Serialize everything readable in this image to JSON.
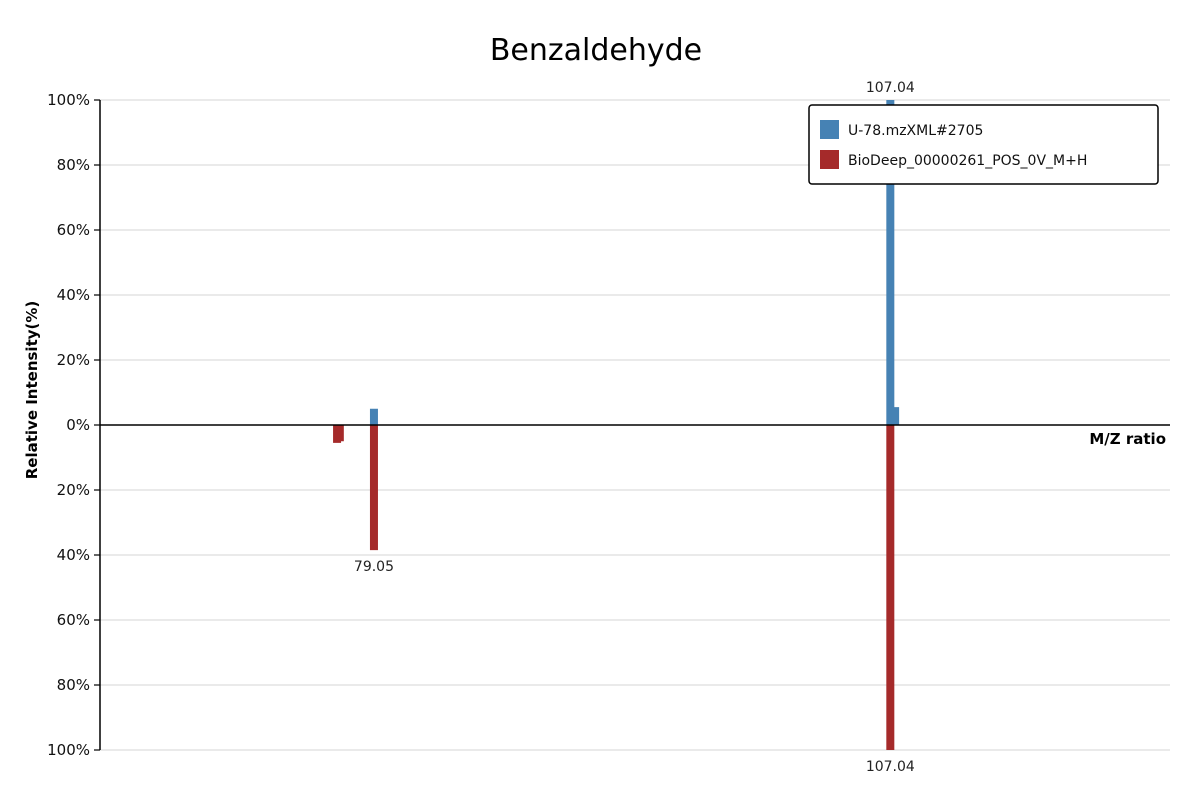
{
  "chart_data": {
    "type": "bar",
    "title": "Benzaldehyde",
    "ylabel": "Relative Intensity(%)",
    "xlabel": "M/Z ratio",
    "ylim": [
      -100,
      100
    ],
    "grid": true,
    "legend_position": "top-right",
    "y_ticks": [
      {
        "value": 100,
        "label": "100%"
      },
      {
        "value": 80,
        "label": "80%"
      },
      {
        "value": 60,
        "label": "60%"
      },
      {
        "value": 40,
        "label": "40%"
      },
      {
        "value": 20,
        "label": "20%"
      },
      {
        "value": 0,
        "label": "0%"
      },
      {
        "value": -20,
        "label": "20%"
      },
      {
        "value": -40,
        "label": "40%"
      },
      {
        "value": -60,
        "label": "60%"
      },
      {
        "value": -80,
        "label": "80%"
      },
      {
        "value": -100,
        "label": "100%"
      }
    ],
    "x_domain": [
      64.2,
      122.2
    ],
    "series": [
      {
        "name": "U-78.mzXML#2705",
        "color": "#4682b4",
        "direction": "up",
        "peaks": [
          {
            "mz": 79.05,
            "intensity": 5
          },
          {
            "mz": 107.04,
            "intensity": 100,
            "label": "107.04"
          },
          {
            "mz": 107.3,
            "intensity": 5.5
          }
        ]
      },
      {
        "name": "BioDeep_00000261_POS_0V_M+H",
        "color": "#a52a2a",
        "direction": "down",
        "peaks": [
          {
            "mz": 77.05,
            "intensity": 5.5
          },
          {
            "mz": 77.2,
            "intensity": 5
          },
          {
            "mz": 79.05,
            "intensity": 38.5,
            "label": "79.05"
          },
          {
            "mz": 107.04,
            "intensity": 100,
            "label": "107.04"
          }
        ]
      }
    ]
  }
}
